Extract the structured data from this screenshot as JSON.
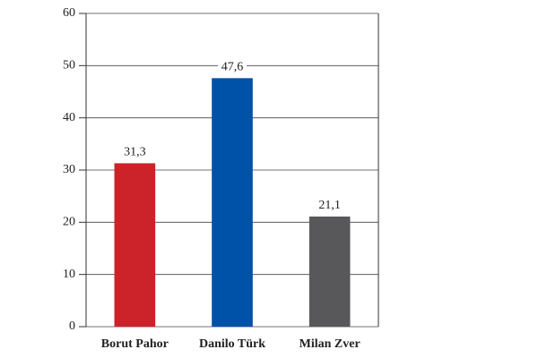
{
  "chart_data": {
    "type": "bar",
    "categories": [
      "Borut Pahor",
      "Danilo Türk",
      "Milan Zver"
    ],
    "values": [
      31.3,
      47.6,
      21.1
    ],
    "value_labels": [
      "31,3",
      "47,6",
      "21,1"
    ],
    "colors": [
      "#cc2229",
      "#0051a8",
      "#58585a"
    ],
    "ylim": [
      0,
      60
    ],
    "yticks": [
      0,
      10,
      20,
      30,
      40,
      50,
      60
    ],
    "grid": true
  }
}
